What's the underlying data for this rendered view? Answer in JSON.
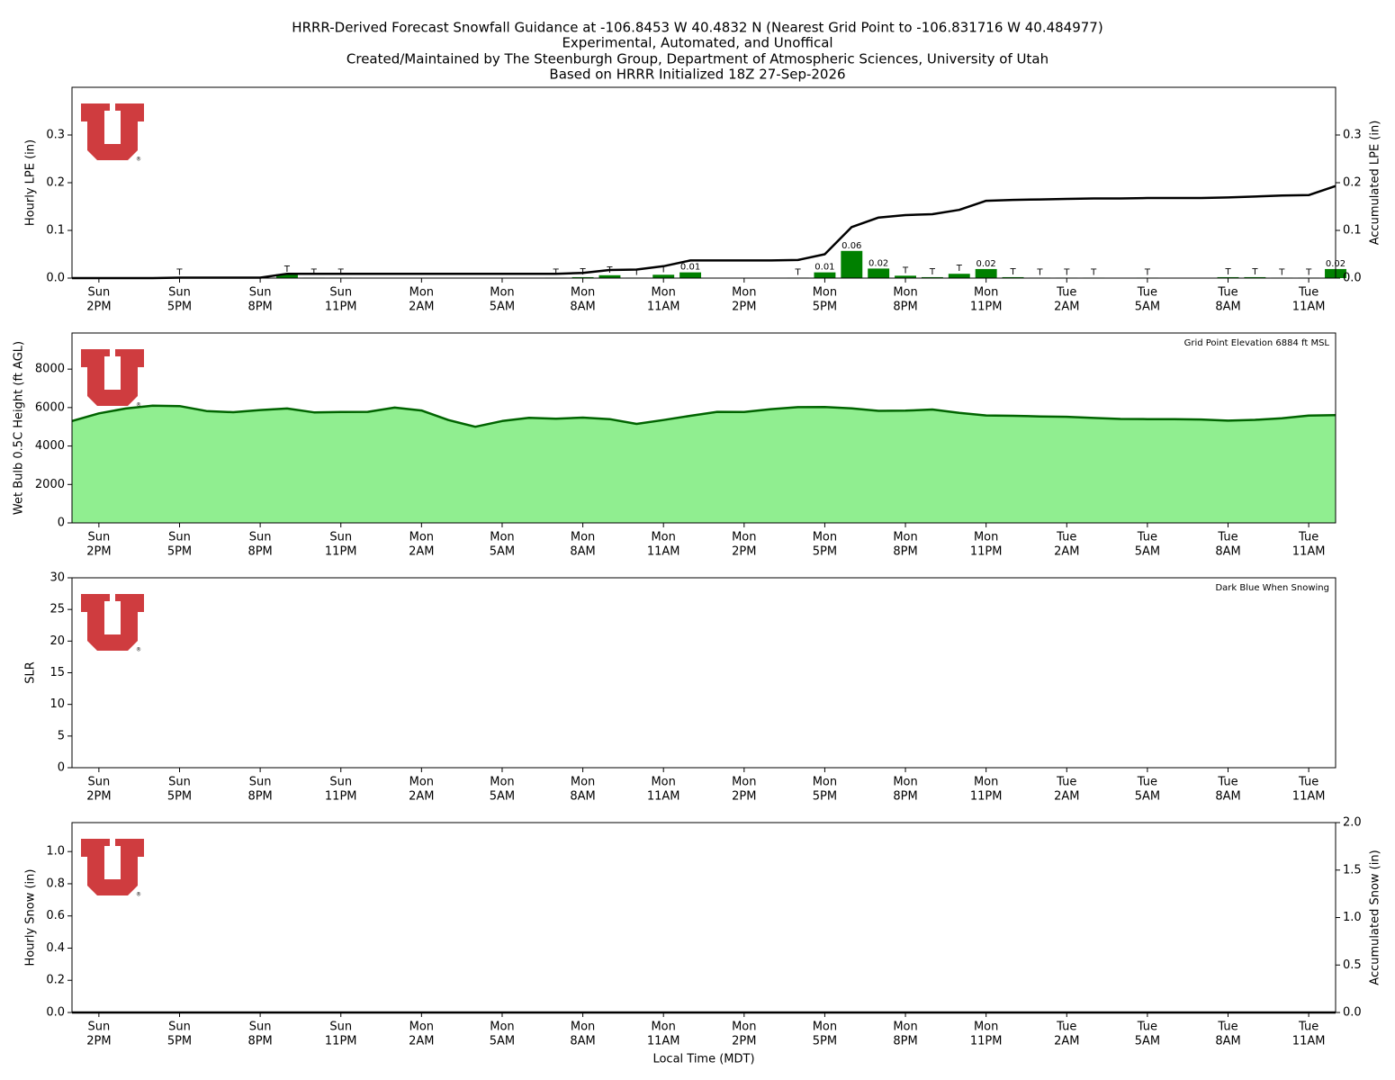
{
  "title": [
    "HRRR-Derived Forecast Snowfall Guidance at -106.8453 W 40.4832 N (Nearest Grid Point to -106.831716 W 40.484977)",
    "Experimental, Automated, and Unoffical",
    "Created/Maintained by The Steenburgh Group, Department of Atmospheric Sciences, University of Utah",
    "Based on HRRR Initialized 18Z 27-Sep-2026"
  ],
  "chart_data": [
    {
      "type": "bar",
      "ylabel": "Hourly LPE (in)",
      "y2label": "Accumulated LPE (in)",
      "categories": [
        null,
        [
          "Sun",
          "2PM"
        ],
        null,
        null,
        [
          "Sun",
          "5PM"
        ],
        null,
        null,
        [
          "Sun",
          "8PM"
        ],
        null,
        null,
        [
          "Sun",
          "11PM"
        ],
        null,
        null,
        [
          "Mon",
          "2AM"
        ],
        null,
        null,
        [
          "Mon",
          "5AM"
        ],
        null,
        null,
        [
          "Mon",
          "8AM"
        ],
        null,
        null,
        [
          "Mon",
          "11AM"
        ],
        null,
        null,
        [
          "Mon",
          "2PM"
        ],
        null,
        null,
        [
          "Mon",
          "5PM"
        ],
        null,
        null,
        [
          "Mon",
          "8PM"
        ],
        null,
        null,
        [
          "Mon",
          "11PM"
        ],
        null,
        null,
        [
          "Tue",
          "2AM"
        ],
        null,
        null,
        [
          "Tue",
          "5AM"
        ],
        null,
        null,
        [
          "Tue",
          "8AM"
        ],
        null,
        null,
        [
          "Tue",
          "11AM"
        ],
        null
      ],
      "ylim": [
        0,
        0.4
      ],
      "yticks": [
        {
          "value": 0,
          "label": "0.0"
        },
        0.1,
        0.2,
        0.3
      ],
      "y2lim": [
        0,
        0.4
      ],
      "y2ticks": [
        {
          "value": 0,
          "label": "0.0"
        },
        0.1,
        0.2,
        0.3
      ],
      "series": [
        {
          "type": "bar",
          "color": "#008000",
          "values": [
            0,
            0,
            0,
            0,
            0.001,
            0,
            0,
            0,
            0.008,
            0.001,
            0.001,
            0,
            0,
            0,
            0,
            0,
            0,
            0,
            0.001,
            0.002,
            0.006,
            0.001,
            0.007,
            0.012,
            0,
            0,
            0,
            0.001,
            0.012,
            0.057,
            0.02,
            0.005,
            0.002,
            0.009,
            0.019,
            0.002,
            0.001,
            0.001,
            0.001,
            0,
            0.001,
            0,
            0,
            0.002,
            0.002,
            0.001,
            0.001,
            0.019
          ],
          "value_labels": [
            null,
            null,
            null,
            null,
            "T",
            null,
            null,
            null,
            "T",
            "T",
            "T",
            null,
            null,
            null,
            null,
            null,
            null,
            null,
            "T",
            "T",
            "T",
            "T",
            "T",
            "0.01",
            null,
            null,
            null,
            "T",
            "0.01",
            "0.06",
            "0.02",
            "T",
            "T",
            "T",
            "0.02",
            "T",
            "T",
            "T",
            "T",
            null,
            "T",
            null,
            null,
            "T",
            "T",
            "T",
            "T",
            "0.02"
          ]
        },
        {
          "type": "line",
          "axis": "y2",
          "color": "#000000",
          "values": [
            0,
            0,
            0,
            0,
            0.001,
            0.001,
            0.001,
            0.001,
            0.009,
            0.009,
            0.009,
            0.009,
            0.009,
            0.009,
            0.009,
            0.009,
            0.009,
            0.009,
            0.009,
            0.011,
            0.017,
            0.018,
            0.025,
            0.037,
            0.037,
            0.037,
            0.037,
            0.038,
            0.05,
            0.107,
            0.127,
            0.132,
            0.134,
            0.143,
            0.162,
            0.164,
            0.165,
            0.166,
            0.167,
            0.167,
            0.168,
            0.168,
            0.168,
            0.169,
            0.171,
            0.173,
            0.174,
            0.193
          ]
        }
      ]
    },
    {
      "type": "area",
      "ylabel": "Wet Bulb 0.5C Height (ft AGL)",
      "annotation": "Grid Point Elevation 6884 ft MSL",
      "categories": [
        null,
        [
          "Sun",
          "2PM"
        ],
        null,
        null,
        [
          "Sun",
          "5PM"
        ],
        null,
        null,
        [
          "Sun",
          "8PM"
        ],
        null,
        null,
        [
          "Sun",
          "11PM"
        ],
        null,
        null,
        [
          "Mon",
          "2AM"
        ],
        null,
        null,
        [
          "Mon",
          "5AM"
        ],
        null,
        null,
        [
          "Mon",
          "8AM"
        ],
        null,
        null,
        [
          "Mon",
          "11AM"
        ],
        null,
        null,
        [
          "Mon",
          "2PM"
        ],
        null,
        null,
        [
          "Mon",
          "5PM"
        ],
        null,
        null,
        [
          "Mon",
          "8PM"
        ],
        null,
        null,
        [
          "Mon",
          "11PM"
        ],
        null,
        null,
        [
          "Tue",
          "2AM"
        ],
        null,
        null,
        [
          "Tue",
          "5AM"
        ],
        null,
        null,
        [
          "Tue",
          "8AM"
        ],
        null,
        null,
        [
          "Tue",
          "11AM"
        ],
        null
      ],
      "ylim": [
        0,
        9880
      ],
      "yticks": [
        0,
        2000,
        4000,
        6000,
        8000
      ],
      "series": [
        {
          "type": "area",
          "color": "#90ee90",
          "line_color": "#006400",
          "values": [
            5300,
            5700,
            5950,
            6100,
            6080,
            5820,
            5760,
            5870,
            5950,
            5750,
            5770,
            5780,
            6000,
            5850,
            5350,
            5000,
            5300,
            5470,
            5420,
            5480,
            5400,
            5150,
            5350,
            5570,
            5780,
            5770,
            5920,
            6020,
            6030,
            5960,
            5830,
            5840,
            5900,
            5720,
            5590,
            5570,
            5540,
            5520,
            5460,
            5410,
            5400,
            5400,
            5380,
            5320,
            5360,
            5440,
            5580,
            5610
          ]
        }
      ]
    },
    {
      "type": "bar",
      "ylabel": "SLR",
      "annotation": "Dark Blue When Snowing",
      "categories": [
        null,
        [
          "Sun",
          "2PM"
        ],
        null,
        null,
        [
          "Sun",
          "5PM"
        ],
        null,
        null,
        [
          "Sun",
          "8PM"
        ],
        null,
        null,
        [
          "Sun",
          "11PM"
        ],
        null,
        null,
        [
          "Mon",
          "2AM"
        ],
        null,
        null,
        [
          "Mon",
          "5AM"
        ],
        null,
        null,
        [
          "Mon",
          "8AM"
        ],
        null,
        null,
        [
          "Mon",
          "11AM"
        ],
        null,
        null,
        [
          "Mon",
          "2PM"
        ],
        null,
        null,
        [
          "Mon",
          "5PM"
        ],
        null,
        null,
        [
          "Mon",
          "8PM"
        ],
        null,
        null,
        [
          "Mon",
          "11PM"
        ],
        null,
        null,
        [
          "Tue",
          "2AM"
        ],
        null,
        null,
        [
          "Tue",
          "5AM"
        ],
        null,
        null,
        [
          "Tue",
          "8AM"
        ],
        null,
        null,
        [
          "Tue",
          "11AM"
        ],
        null
      ],
      "ylim": [
        0,
        30
      ],
      "yticks": [
        0,
        5,
        10,
        15,
        20,
        25,
        30
      ],
      "series": []
    },
    {
      "type": "bar",
      "ylabel": "Hourly Snow (in)",
      "y2label": "Accumulated Snow (in)",
      "xlabel": "Local Time (MDT)",
      "categories": [
        null,
        [
          "Sun",
          "2PM"
        ],
        null,
        null,
        [
          "Sun",
          "5PM"
        ],
        null,
        null,
        [
          "Sun",
          "8PM"
        ],
        null,
        null,
        [
          "Sun",
          "11PM"
        ],
        null,
        null,
        [
          "Mon",
          "2AM"
        ],
        null,
        null,
        [
          "Mon",
          "5AM"
        ],
        null,
        null,
        [
          "Mon",
          "8AM"
        ],
        null,
        null,
        [
          "Mon",
          "11AM"
        ],
        null,
        null,
        [
          "Mon",
          "2PM"
        ],
        null,
        null,
        [
          "Mon",
          "5PM"
        ],
        null,
        null,
        [
          "Mon",
          "8PM"
        ],
        null,
        null,
        [
          "Mon",
          "11PM"
        ],
        null,
        null,
        [
          "Tue",
          "2AM"
        ],
        null,
        null,
        [
          "Tue",
          "5AM"
        ],
        null,
        null,
        [
          "Tue",
          "8AM"
        ],
        null,
        null,
        [
          "Tue",
          "11AM"
        ],
        null
      ],
      "ylim": [
        0,
        1.18
      ],
      "yticks": [
        {
          "value": 0,
          "label": "0.0"
        },
        0.2,
        0.4,
        0.6,
        0.8,
        {
          "value": 1,
          "label": "1.0"
        }
      ],
      "y2lim": [
        0,
        2
      ],
      "y2ticks": [
        {
          "value": 0,
          "label": "0.0"
        },
        0.5,
        {
          "value": 1,
          "label": "1.0"
        },
        1.5,
        {
          "value": 2,
          "label": "2.0"
        }
      ],
      "series": [
        {
          "type": "line",
          "axis": "y2",
          "color": "#000000",
          "values": [
            0,
            0,
            0,
            0,
            0,
            0,
            0,
            0,
            0,
            0,
            0,
            0,
            0,
            0,
            0,
            0,
            0,
            0,
            0,
            0,
            0,
            0,
            0,
            0,
            0,
            0,
            0,
            0,
            0,
            0,
            0,
            0,
            0,
            0,
            0,
            0,
            0,
            0,
            0,
            0,
            0,
            0,
            0,
            0,
            0,
            0,
            0,
            0
          ]
        }
      ]
    }
  ]
}
